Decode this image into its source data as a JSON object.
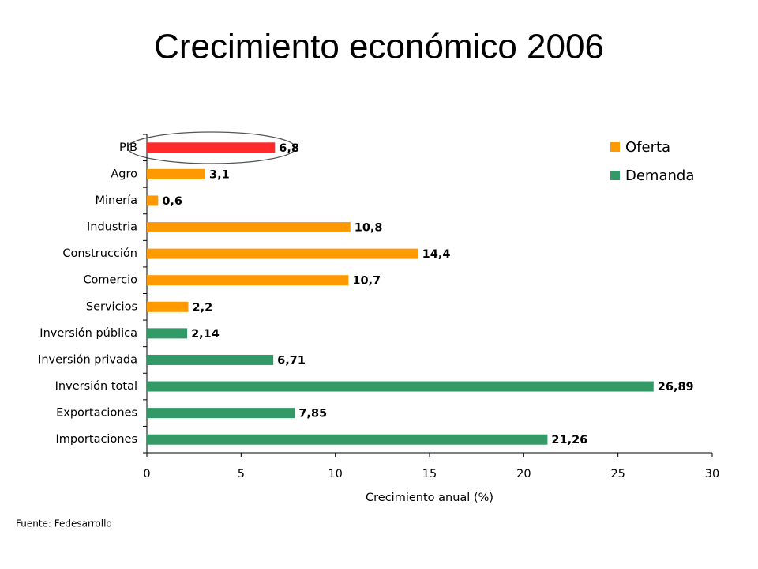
{
  "chart_data": {
    "type": "bar",
    "orientation": "horizontal",
    "title": "Crecimiento económico 2006",
    "categories": [
      "PIB",
      "Agro",
      "Minería",
      "Industria",
      "Construcción",
      "Comercio",
      "Servicios",
      "Inversión pública",
      "Inversión privada",
      "Inversión total",
      "Exportaciones",
      "Importaciones"
    ],
    "values": [
      6.8,
      3.1,
      0.6,
      10.8,
      14.4,
      10.7,
      2.2,
      2.14,
      6.71,
      26.89,
      7.85,
      21.26
    ],
    "value_labels": [
      "6,8",
      "3,1",
      "0,6",
      "10,8",
      "14,4",
      "10,7",
      "2,2",
      "2,14",
      "6,71",
      "26,89",
      "7,85",
      "21,26"
    ],
    "colors": [
      "#ff2a2a",
      "#ff9900",
      "#ff9900",
      "#ff9900",
      "#ff9900",
      "#ff9900",
      "#ff9900",
      "#339966",
      "#339966",
      "#339966",
      "#339966",
      "#339966"
    ],
    "legend": [
      {
        "name": "Oferta",
        "color": "#ff9900"
      },
      {
        "name": "Demanda",
        "color": "#339966"
      }
    ],
    "x_label": "Crecimiento anual (%)",
    "xlim": [
      0,
      30
    ],
    "xticks": [
      0,
      5,
      10,
      15,
      20,
      25,
      30
    ],
    "source": "Fuente: Fedesarrollo"
  }
}
